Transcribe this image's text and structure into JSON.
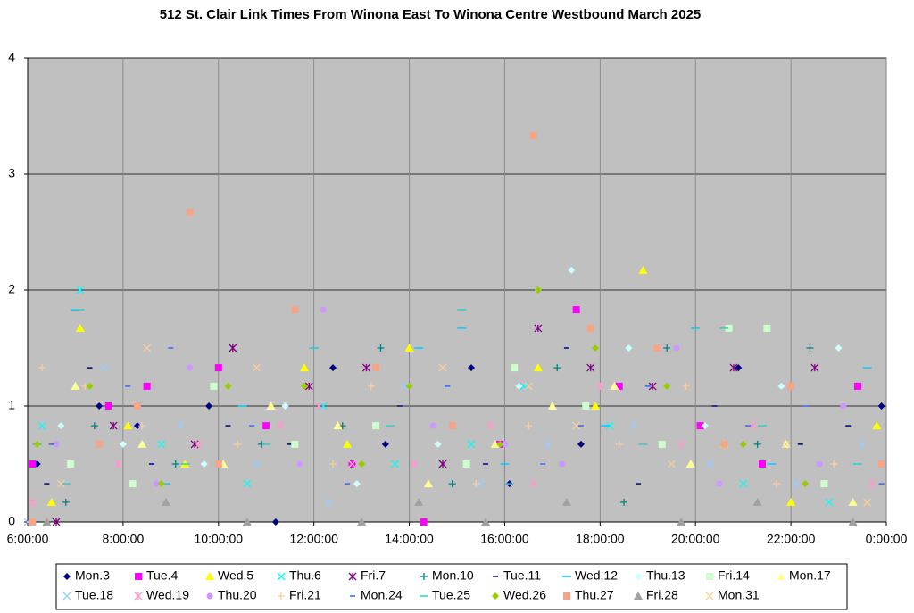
{
  "chart_data": {
    "type": "scatter",
    "title": "512 St. Clair Link Times From Winona East To Winona Centre Westbound March 2025",
    "xlim": [
      6,
      24
    ],
    "xticks": [
      {
        "value": 6,
        "label": "6:00:00"
      },
      {
        "value": 8,
        "label": "8:00:00"
      },
      {
        "value": 10,
        "label": "10:00:00"
      },
      {
        "value": 12,
        "label": "12:00:00"
      },
      {
        "value": 14,
        "label": "14:00:00"
      },
      {
        "value": 16,
        "label": "16:00:00"
      },
      {
        "value": 18,
        "label": "18:00:00"
      },
      {
        "value": 20,
        "label": "20:00:00"
      },
      {
        "value": 22,
        "label": "22:00:00"
      },
      {
        "value": 24,
        "label": "0:00:00"
      }
    ],
    "ylim": [
      0,
      4
    ],
    "yticks": [
      0,
      1,
      2,
      3,
      4
    ],
    "grid": true,
    "legend": "bottom",
    "series": [
      {
        "name": "Mon.3",
        "color": "#000080",
        "marker": "diamond",
        "x": [
          6.2,
          7.5,
          8.3,
          9.8,
          11.2,
          12.4,
          13.5,
          15.3,
          16.1,
          17.6,
          19.2,
          20.9,
          23.9
        ],
        "values": [
          0.5,
          1,
          0.83,
          1,
          0,
          1.33,
          0.67,
          1.33,
          0.33,
          0.67,
          1.5,
          1.33,
          1
        ]
      },
      {
        "name": "Tue.4",
        "color": "#ff00ff",
        "marker": "square",
        "x": [
          6.1,
          7.7,
          8.5,
          10.0,
          11.0,
          12.8,
          14.3,
          15.9,
          17.5,
          18.4,
          20.1,
          21.4,
          23.4
        ],
        "values": [
          0.5,
          1,
          1.17,
          1.33,
          0.83,
          0.5,
          0,
          0.67,
          1.83,
          1.17,
          0.83,
          0.5,
          1.17
        ]
      },
      {
        "name": "Wed.5",
        "color": "#ffff00",
        "marker": "triangle",
        "x": [
          6.5,
          7.1,
          8.1,
          9.3,
          11.8,
          12.7,
          14.0,
          16.7,
          17.9,
          18.9,
          20.6,
          22.0,
          23.8
        ],
        "values": [
          0.17,
          1.67,
          0.83,
          0.5,
          1.33,
          0.67,
          1.5,
          1.33,
          1,
          2.17,
          0.67,
          0.17,
          0.83
        ]
      },
      {
        "name": "Thu.6",
        "color": "#00ffff",
        "marker": "x",
        "x": [
          6.3,
          7.1,
          8.8,
          10.6,
          12.2,
          13.7,
          15.3,
          16.4,
          18.2,
          19.5,
          21.0,
          22.8
        ],
        "values": [
          0.83,
          2,
          0.67,
          0.33,
          1,
          0.5,
          0.67,
          1.17,
          0.83,
          0.5,
          0.33,
          0.17
        ]
      },
      {
        "name": "Fri.7",
        "color": "#800080",
        "marker": "star",
        "x": [
          6.6,
          7.8,
          9.5,
          10.3,
          11.9,
          13.1,
          14.7,
          16.7,
          17.8,
          19.1,
          20.8,
          22.5
        ],
        "values": [
          0,
          0.83,
          0.67,
          1.5,
          1.17,
          1.33,
          0.5,
          1.67,
          1.33,
          1.17,
          1.33,
          1.33
        ]
      },
      {
        "name": "Mon.10",
        "color": "#008080",
        "marker": "plus",
        "x": [
          6.8,
          7.4,
          9.1,
          10.9,
          12.6,
          13.4,
          14.9,
          17.1,
          18.5,
          19.4,
          21.3,
          22.4
        ],
        "values": [
          0.17,
          0.83,
          0.5,
          0.67,
          0.83,
          1.5,
          0.33,
          1.33,
          0.17,
          1.5,
          0.67,
          1.5
        ]
      },
      {
        "name": "Tue.11",
        "color": "#000080",
        "marker": "dash",
        "x": [
          6.4,
          7.3,
          8.6,
          10.2,
          11.5,
          13.8,
          15.6,
          17.3,
          18.8,
          20.4,
          22.2,
          23.2
        ],
        "values": [
          0.33,
          1.33,
          0.5,
          0.83,
          0.67,
          1,
          0.5,
          1.5,
          0.33,
          1,
          0.67,
          0.83
        ]
      },
      {
        "name": "Wed.12",
        "color": "#00ccff",
        "marker": "longdash",
        "x": [
          6.2,
          7.0,
          8.9,
          10.5,
          12.0,
          14.2,
          15.1,
          16.0,
          18.1,
          20.0,
          21.6,
          23.6
        ],
        "values": [
          0.67,
          1.83,
          0.33,
          1,
          1.5,
          1.5,
          1.67,
          0.5,
          0.83,
          1.67,
          0.5,
          1.33
        ]
      },
      {
        "name": "Thu.13",
        "color": "#ccffff",
        "marker": "diamond",
        "x": [
          6.7,
          8.0,
          9.7,
          11.4,
          12.9,
          14.6,
          16.3,
          17.4,
          18.6,
          20.2,
          21.8,
          23.0
        ],
        "values": [
          0.83,
          0.67,
          0.5,
          1,
          0.33,
          0.67,
          1.17,
          2.17,
          1.5,
          0.83,
          1.17,
          1.5
        ]
      },
      {
        "name": "Fri.14",
        "color": "#ccffcc",
        "marker": "square",
        "x": [
          6.9,
          8.2,
          9.9,
          11.6,
          13.3,
          15.2,
          16.2,
          17.7,
          19.3,
          20.7,
          21.5,
          22.7
        ],
        "values": [
          0.5,
          0.33,
          1.17,
          0.67,
          0.83,
          0.5,
          1.33,
          1,
          0.67,
          1.67,
          1.67,
          0.33
        ]
      },
      {
        "name": "Mon.17",
        "color": "#ffff99",
        "marker": "triangle",
        "x": [
          7.0,
          8.4,
          10.1,
          11.1,
          12.5,
          14.4,
          15.8,
          17.0,
          18.3,
          19.9,
          21.9,
          23.3
        ],
        "values": [
          1.17,
          0.67,
          0.5,
          1,
          0.83,
          0.33,
          0.67,
          1,
          1.17,
          0.5,
          0.67,
          0.17
        ]
      },
      {
        "name": "Tue.18",
        "color": "#99ccff",
        "marker": "x",
        "x": [
          6.0,
          7.6,
          9.2,
          10.8,
          12.3,
          13.9,
          15.5,
          16.9,
          18.7,
          20.3,
          22.1,
          23.5
        ],
        "values": [
          0,
          1.33,
          0.83,
          0.5,
          0.17,
          1.17,
          0.33,
          0.67,
          0.83,
          0.5,
          0.33,
          0.67
        ]
      },
      {
        "name": "Wed.19",
        "color": "#ff99cc",
        "marker": "star",
        "x": [
          6.1,
          7.9,
          9.6,
          11.3,
          12.1,
          14.1,
          15.7,
          16.6,
          18.0,
          19.7,
          21.2,
          23.7
        ],
        "values": [
          0.17,
          0.5,
          0.67,
          0.83,
          1,
          0.5,
          0.83,
          0.33,
          1.17,
          0.67,
          0.83,
          0.33
        ]
      },
      {
        "name": "Thu.20",
        "color": "#cc99ff",
        "marker": "circle",
        "x": [
          6.6,
          8.7,
          9.4,
          11.7,
          12.2,
          14.5,
          16.0,
          17.2,
          19.6,
          20.5,
          22.6,
          23.1
        ],
        "values": [
          0.67,
          0.33,
          1.33,
          0.5,
          1.83,
          0.83,
          0.67,
          0.5,
          1.5,
          0.33,
          0.5,
          1
        ]
      },
      {
        "name": "Fri.21",
        "color": "#ffcc99",
        "marker": "plus",
        "x": [
          6.3,
          7.2,
          8.4,
          10.4,
          12.4,
          13.2,
          15.4,
          16.5,
          18.4,
          19.8,
          21.7,
          22.9
        ],
        "values": [
          1.33,
          1.17,
          0.83,
          0.67,
          0.5,
          1.17,
          0.33,
          0.83,
          0.67,
          1.17,
          0.33,
          0.5
        ]
      },
      {
        "name": "Mon.24",
        "color": "#3366ff",
        "marker": "dash",
        "x": [
          6.5,
          8.1,
          9.0,
          10.7,
          12.7,
          14.8,
          16.8,
          17.6,
          19.0,
          21.1,
          22.3,
          23.9
        ],
        "values": [
          0.67,
          1.17,
          1.5,
          0.83,
          0.33,
          1.17,
          0.5,
          0.83,
          1.17,
          0.83,
          1,
          0.33
        ]
      },
      {
        "name": "Tue.25",
        "color": "#33cccc",
        "marker": "longdash",
        "x": [
          6.8,
          7.1,
          9.3,
          11.0,
          12.0,
          13.6,
          15.1,
          16.1,
          18.9,
          20.6,
          21.4,
          23.4
        ],
        "values": [
          0.33,
          1.83,
          0.5,
          0.67,
          1.5,
          0.83,
          1.83,
          0.33,
          0.67,
          1.67,
          0.83,
          0.5
        ]
      },
      {
        "name": "Wed.26",
        "color": "#99cc00",
        "marker": "diamond",
        "x": [
          6.2,
          7.3,
          8.8,
          10.2,
          11.8,
          13.0,
          14.0,
          15.9,
          16.7,
          17.9,
          19.4,
          21.0,
          22.3
        ],
        "values": [
          0.67,
          1.17,
          0.33,
          1.17,
          1.17,
          0.5,
          1.17,
          0.67,
          2,
          1.5,
          1.17,
          0.67,
          0.33
        ]
      },
      {
        "name": "Thu.27",
        "color": "#f4a58a",
        "marker": "square",
        "x": [
          6.1,
          7.5,
          8.3,
          9.4,
          10.0,
          11.6,
          13.3,
          14.9,
          16.6,
          17.8,
          19.2,
          20.6,
          22.0,
          23.9
        ],
        "values": [
          0,
          0.67,
          1,
          2.67,
          0.5,
          1.83,
          1.33,
          0.83,
          3.33,
          1.67,
          1.5,
          0.67,
          1.17,
          0.5
        ]
      },
      {
        "name": "Fri.28",
        "color": "#a0a0a0",
        "marker": "triangle",
        "x": [
          6.4,
          8.9,
          10.6,
          13.0,
          14.2,
          15.6,
          17.3,
          19.7,
          21.3,
          23.3
        ],
        "values": [
          0,
          0.17,
          0,
          0,
          0.17,
          0,
          0.17,
          0,
          0.17,
          0
        ]
      },
      {
        "name": "Mon.31",
        "color": "#ffcc99",
        "marker": "x",
        "x": [
          6.7,
          8.5,
          10.8,
          12.8,
          14.7,
          16.5,
          17.5,
          19.5,
          21.9,
          23.6
        ],
        "values": [
          0.33,
          1.5,
          1.33,
          0.5,
          1.33,
          1.17,
          0.83,
          0.5,
          0.67,
          0.17
        ]
      }
    ]
  }
}
